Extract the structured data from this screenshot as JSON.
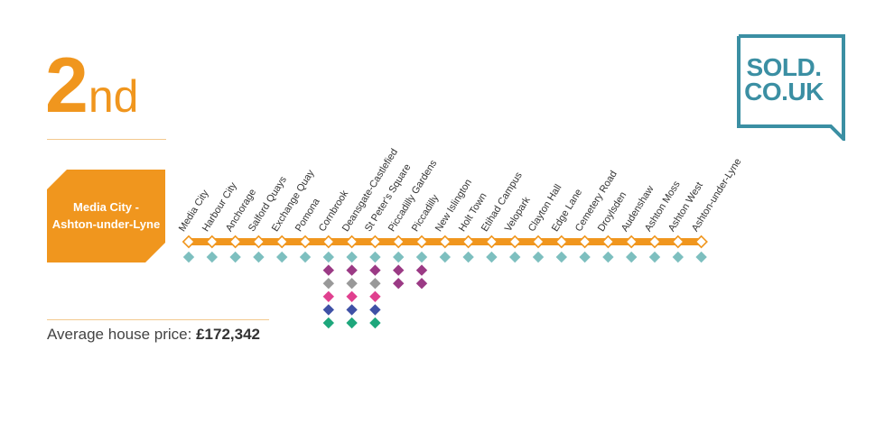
{
  "rank": {
    "number": "2",
    "suffix": "nd"
  },
  "route": {
    "line1": "Media City -",
    "line2": "Ashton-under-Lyne"
  },
  "average_price": {
    "label": "Average house price:",
    "value": "£172,342"
  },
  "logo": {
    "line1": "SOLD.",
    "line2": "CO.UK"
  },
  "colors": {
    "accent": "#f0961e",
    "line_teal": "#7dbfbf",
    "line_grey": "#999999",
    "line_purple": "#9b3a85",
    "line_pink": "#e0408f",
    "line_blue": "#3f51a6",
    "line_green": "#1ea77c",
    "logo": "#3b8fa3"
  },
  "stations": [
    {
      "name": "Media City",
      "lines": [
        "teal"
      ]
    },
    {
      "name": "Harbour City",
      "lines": [
        "teal"
      ]
    },
    {
      "name": "Anchorage",
      "lines": [
        "teal"
      ]
    },
    {
      "name": "Salford Quays",
      "lines": [
        "teal"
      ]
    },
    {
      "name": "Exchange Quay",
      "lines": [
        "teal"
      ]
    },
    {
      "name": "Pomona",
      "lines": [
        "teal"
      ]
    },
    {
      "name": "Cornbrook",
      "lines": [
        "teal",
        "purple",
        "grey",
        "pink",
        "blue",
        "green"
      ]
    },
    {
      "name": "Deansgate-Castlefied",
      "lines": [
        "teal",
        "purple",
        "grey",
        "pink",
        "blue",
        "green"
      ]
    },
    {
      "name": "St Peter's Square",
      "lines": [
        "teal",
        "purple",
        "grey",
        "pink",
        "blue",
        "green"
      ]
    },
    {
      "name": "Piccadilly Gardens",
      "lines": [
        "teal",
        "purple",
        "purple"
      ]
    },
    {
      "name": "Piccadilly",
      "lines": [
        "teal",
        "purple",
        "purple"
      ]
    },
    {
      "name": "New Islington",
      "lines": [
        "teal"
      ]
    },
    {
      "name": "Holt Town",
      "lines": [
        "teal"
      ]
    },
    {
      "name": "Etihad Campus",
      "lines": [
        "teal"
      ]
    },
    {
      "name": "Velopark",
      "lines": [
        "teal"
      ]
    },
    {
      "name": "Clayton Hall",
      "lines": [
        "teal"
      ]
    },
    {
      "name": "Edge Lane",
      "lines": [
        "teal"
      ]
    },
    {
      "name": "Cemetery Road",
      "lines": [
        "teal"
      ]
    },
    {
      "name": "Droylsden",
      "lines": [
        "teal"
      ]
    },
    {
      "name": "Audenshaw",
      "lines": [
        "teal"
      ]
    },
    {
      "name": "Ashton Moss",
      "lines": [
        "teal"
      ]
    },
    {
      "name": "Ashton West",
      "lines": [
        "teal"
      ]
    },
    {
      "name": "Ashton-under-Lyne",
      "lines": [
        "teal"
      ]
    }
  ]
}
